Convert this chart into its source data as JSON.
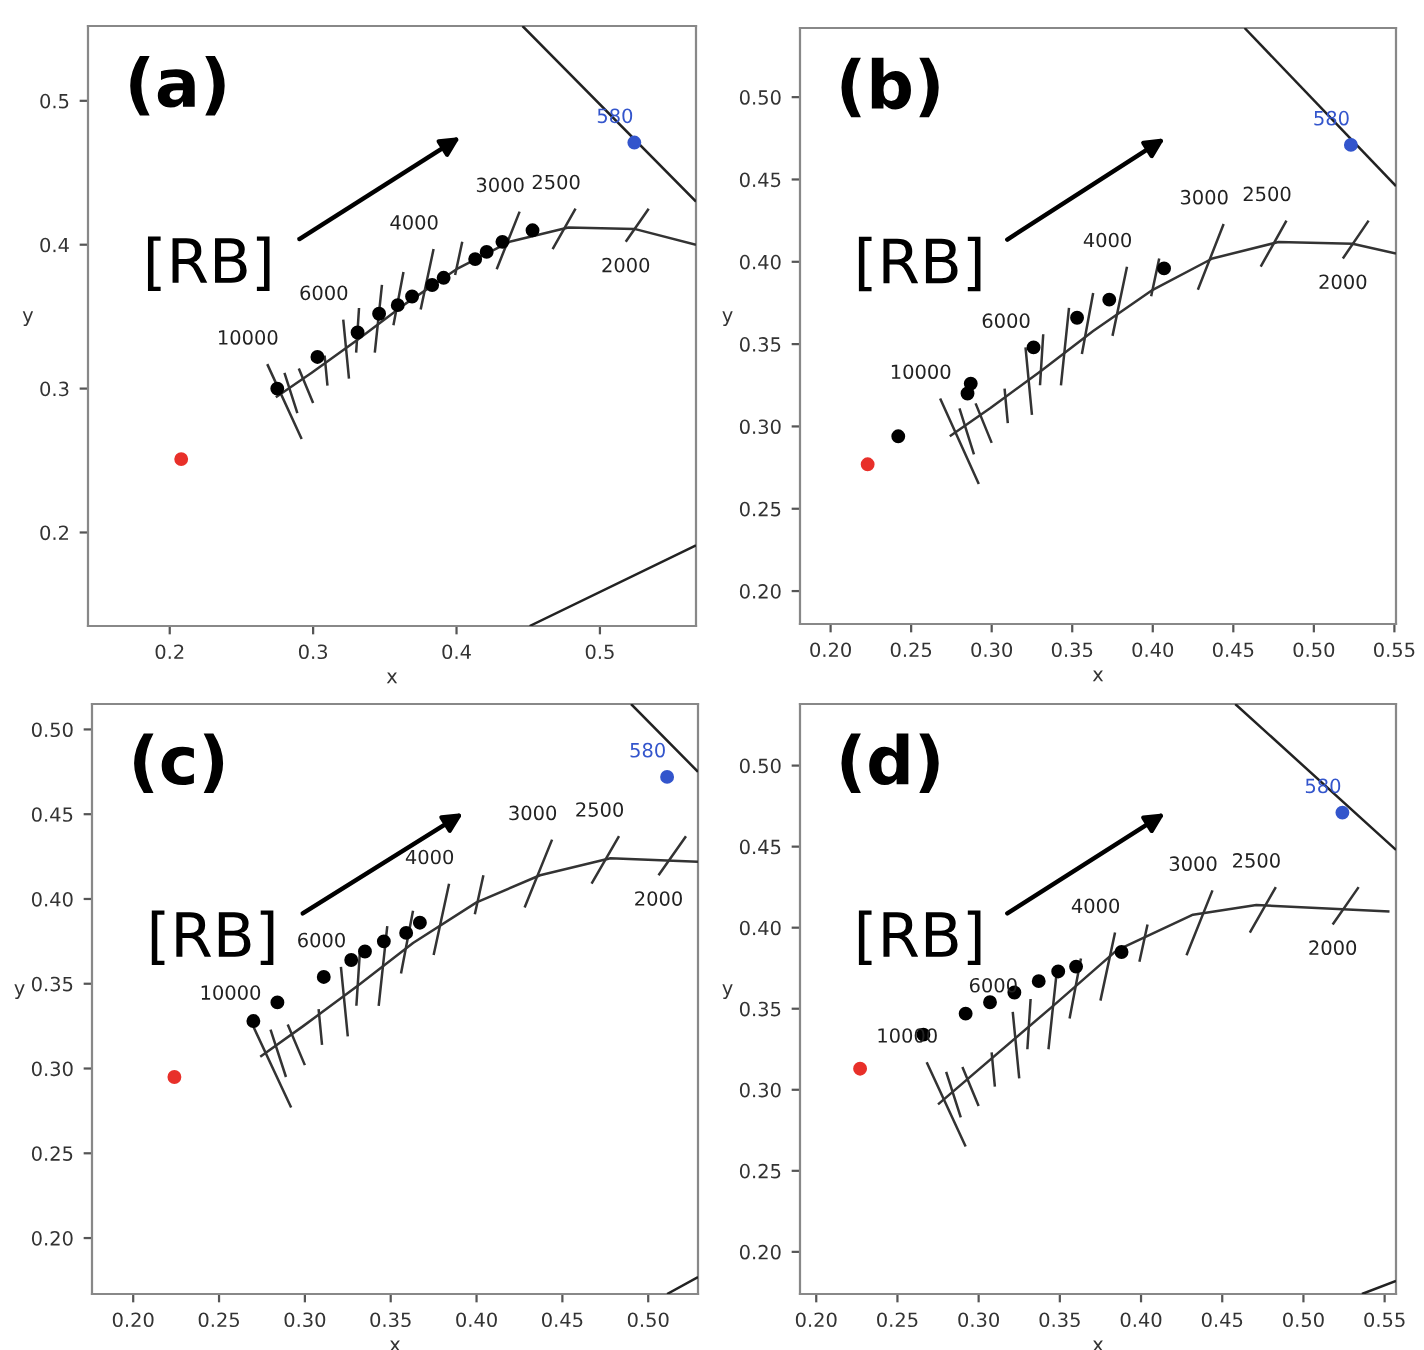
{
  "chart_data": [
    {
      "type": "scatter",
      "title": "(a)",
      "xlabel": "x",
      "ylabel": "y",
      "grid": false,
      "xlim": [
        0.143,
        0.567
      ],
      "ylim": [
        0.135,
        0.552
      ],
      "xticks": [
        0.2,
        0.3,
        0.4,
        0.5
      ],
      "yticks": [
        0.2,
        0.3,
        0.4,
        0.5
      ],
      "annotations": [
        "[RB]",
        {
          "text": "10000",
          "x": 0.268,
          "y": 0.317
        },
        {
          "text": "6000",
          "x": 0.321,
          "y": 0.348
        },
        {
          "text": "4000",
          "x": 0.384,
          "y": 0.397
        },
        {
          "text": "3000",
          "x": 0.444,
          "y": 0.423
        },
        {
          "text": "2500",
          "x": 0.483,
          "y": 0.425
        },
        {
          "text": "2000",
          "x": 0.518,
          "y": 0.402
        },
        {
          "text": "580",
          "x": 0.524,
          "y": 0.471
        }
      ],
      "series": [
        {
          "marker": "circle",
          "color": "#000000",
          "x": [
            0.275,
            0.303,
            0.331,
            0.346,
            0.359,
            0.369,
            0.383,
            0.391,
            0.413,
            0.421,
            0.432,
            0.453
          ],
          "values": [
            0.3,
            0.322,
            0.339,
            0.352,
            0.358,
            0.364,
            0.372,
            0.377,
            0.39,
            0.395,
            0.402,
            0.41
          ]
        },
        {
          "marker": "circle",
          "color": "#e8302a",
          "x": [
            0.208
          ],
          "values": [
            0.251
          ]
        },
        {
          "marker": "circle",
          "color": "#3355cc",
          "x": [
            0.524
          ],
          "values": [
            0.471
          ]
        },
        {
          "type": "line",
          "color": "#333333",
          "x": [
            0.274,
            0.299,
            0.331,
            0.363,
            0.4,
            0.437,
            0.478,
            0.524,
            0.567
          ],
          "values": [
            0.294,
            0.311,
            0.334,
            0.358,
            0.383,
            0.402,
            0.412,
            0.411,
            0.4
          ]
        },
        {
          "type": "line",
          "color": "#333333",
          "x": [
            0.268,
            0.292,
            null,
            0.28,
            0.289,
            null,
            0.29,
            0.3,
            null,
            0.308,
            0.31,
            null,
            0.321,
            0.325,
            null,
            0.332,
            0.33,
            null,
            0.348,
            0.343,
            null,
            0.363,
            0.356,
            null,
            0.384,
            0.375,
            null,
            0.404,
            0.399,
            null,
            0.444,
            0.428,
            null,
            0.483,
            0.467,
            null,
            0.534,
            0.518
          ],
          "values": [
            0.317,
            0.265,
            null,
            0.311,
            0.283,
            null,
            0.314,
            0.29,
            null,
            0.323,
            0.302,
            null,
            0.348,
            0.307,
            null,
            0.356,
            0.325,
            null,
            0.372,
            0.325,
            null,
            0.381,
            0.344,
            null,
            0.397,
            0.355,
            null,
            0.402,
            0.379,
            null,
            0.423,
            0.383,
            null,
            0.425,
            0.397,
            null,
            0.425,
            0.402
          ]
        },
        {
          "type": "line",
          "color": "#222222",
          "x": [
            0.446,
            0.567,
            null,
            0.451,
            0.567
          ],
          "values": [
            0.552,
            0.43,
            null,
            0.135,
            0.191
          ]
        }
      ]
    },
    {
      "type": "scatter",
      "title": "(b)",
      "xlabel": "x",
      "ylabel": "y",
      "grid": false,
      "xlim": [
        0.181,
        0.551
      ],
      "ylim": [
        0.18,
        0.542
      ],
      "xticks": [
        {
          "value": 0.2,
          "label": "0.20"
        },
        {
          "value": 0.25,
          "label": "0.25"
        },
        {
          "value": 0.3,
          "label": "0.30"
        },
        {
          "value": 0.35,
          "label": "0.35"
        },
        {
          "value": 0.4,
          "label": "0.40"
        },
        {
          "value": 0.45,
          "label": "0.45"
        },
        {
          "value": 0.5,
          "label": "0.50"
        },
        {
          "value": 0.55,
          "label": "0.55"
        }
      ],
      "yticks": [
        {
          "value": 0.2,
          "label": "0.20"
        },
        {
          "value": 0.25,
          "label": "0.25"
        },
        {
          "value": 0.3,
          "label": "0.30"
        },
        {
          "value": 0.35,
          "label": "0.35"
        },
        {
          "value": 0.4,
          "label": "0.40"
        },
        {
          "value": 0.45,
          "label": "0.45"
        },
        {
          "value": 0.5,
          "label": "0.50"
        }
      ],
      "annotations": [
        "[RB]",
        {
          "text": "10000",
          "x": 0.268,
          "y": 0.317
        },
        {
          "text": "6000",
          "x": 0.321,
          "y": 0.348
        },
        {
          "text": "4000",
          "x": 0.384,
          "y": 0.397
        },
        {
          "text": "3000",
          "x": 0.444,
          "y": 0.423
        },
        {
          "text": "2500",
          "x": 0.483,
          "y": 0.425
        },
        {
          "text": "2000",
          "x": 0.518,
          "y": 0.402
        },
        {
          "text": "580",
          "x": 0.523,
          "y": 0.471
        }
      ],
      "series": [
        {
          "marker": "circle",
          "color": "#000000",
          "x": [
            0.242,
            0.285,
            0.287,
            0.326,
            0.353,
            0.373,
            0.407
          ],
          "values": [
            0.294,
            0.32,
            0.326,
            0.348,
            0.366,
            0.377,
            0.396
          ]
        },
        {
          "marker": "circle",
          "color": "#e8302a",
          "x": [
            0.223
          ],
          "values": [
            0.277
          ]
        },
        {
          "marker": "circle",
          "color": "#3355cc",
          "x": [
            0.523
          ],
          "values": [
            0.471
          ]
        },
        {
          "type": "line",
          "color": "#333333",
          "x": [
            0.274,
            0.299,
            0.331,
            0.363,
            0.4,
            0.437,
            0.478,
            0.524,
            0.551
          ],
          "values": [
            0.294,
            0.311,
            0.334,
            0.358,
            0.383,
            0.402,
            0.412,
            0.411,
            0.405
          ]
        },
        {
          "type": "line",
          "color": "#333333",
          "x": [
            0.268,
            0.292,
            null,
            0.28,
            0.289,
            null,
            0.29,
            0.3,
            null,
            0.308,
            0.31,
            null,
            0.321,
            0.325,
            null,
            0.332,
            0.33,
            null,
            0.348,
            0.343,
            null,
            0.363,
            0.356,
            null,
            0.384,
            0.375,
            null,
            0.404,
            0.399,
            null,
            0.444,
            0.428,
            null,
            0.483,
            0.467,
            null,
            0.534,
            0.518
          ],
          "values": [
            0.317,
            0.265,
            null,
            0.311,
            0.283,
            null,
            0.314,
            0.29,
            null,
            0.323,
            0.302,
            null,
            0.348,
            0.307,
            null,
            0.356,
            0.325,
            null,
            0.372,
            0.325,
            null,
            0.381,
            0.344,
            null,
            0.397,
            0.355,
            null,
            0.402,
            0.379,
            null,
            0.423,
            0.383,
            null,
            0.425,
            0.397,
            null,
            0.425,
            0.402
          ]
        },
        {
          "type": "line",
          "color": "#222222",
          "x": [
            0.457,
            0.551
          ],
          "values": [
            0.542,
            0.446
          ]
        }
      ]
    },
    {
      "type": "scatter",
      "title": "(c)",
      "xlabel": "x",
      "ylabel": "y",
      "grid": false,
      "xlim": [
        0.176,
        0.529
      ],
      "ylim": [
        0.167,
        0.515
      ],
      "xticks": [
        {
          "value": 0.2,
          "label": "0.20"
        },
        {
          "value": 0.25,
          "label": "0.25"
        },
        {
          "value": 0.3,
          "label": "0.30"
        },
        {
          "value": 0.35,
          "label": "0.35"
        },
        {
          "value": 0.4,
          "label": "0.40"
        },
        {
          "value": 0.45,
          "label": "0.45"
        },
        {
          "value": 0.5,
          "label": "0.50"
        }
      ],
      "yticks": [
        {
          "value": 0.2,
          "label": "0.20"
        },
        {
          "value": 0.25,
          "label": "0.25"
        },
        {
          "value": 0.3,
          "label": "0.30"
        },
        {
          "value": 0.35,
          "label": "0.35"
        },
        {
          "value": 0.4,
          "label": "0.40"
        },
        {
          "value": 0.45,
          "label": "0.45"
        },
        {
          "value": 0.5,
          "label": "0.50"
        }
      ],
      "annotations": [
        "[RB]",
        {
          "text": "10000",
          "x": 0.268,
          "y": 0.329
        },
        {
          "text": "6000",
          "x": 0.321,
          "y": 0.36
        },
        {
          "text": "4000",
          "x": 0.384,
          "y": 0.409
        },
        {
          "text": "3000",
          "x": 0.444,
          "y": 0.435
        },
        {
          "text": "2500",
          "x": 0.483,
          "y": 0.437
        },
        {
          "text": "2000",
          "x": 0.506,
          "y": 0.414
        },
        {
          "text": "580",
          "x": 0.511,
          "y": 0.472
        }
      ],
      "series": [
        {
          "marker": "circle",
          "color": "#000000",
          "x": [
            0.27,
            0.284,
            0.311,
            0.327,
            0.335,
            0.346,
            0.359,
            0.367
          ],
          "values": [
            0.328,
            0.339,
            0.354,
            0.364,
            0.369,
            0.375,
            0.38,
            0.386
          ]
        },
        {
          "marker": "circle",
          "color": "#e8302a",
          "x": [
            0.224
          ],
          "values": [
            0.295
          ]
        },
        {
          "marker": "circle",
          "color": "#3355cc",
          "x": [
            0.511
          ],
          "values": [
            0.472
          ]
        },
        {
          "type": "line",
          "color": "#333333",
          "x": [
            0.274,
            0.299,
            0.331,
            0.363,
            0.4,
            0.437,
            0.478,
            0.529
          ],
          "values": [
            0.307,
            0.325,
            0.349,
            0.374,
            0.398,
            0.414,
            0.424,
            0.422
          ]
        },
        {
          "type": "line",
          "color": "#333333",
          "x": [
            0.268,
            0.292,
            null,
            0.28,
            0.289,
            null,
            0.29,
            0.3,
            null,
            0.308,
            0.31,
            null,
            0.321,
            0.325,
            null,
            0.332,
            0.33,
            null,
            0.348,
            0.343,
            null,
            0.363,
            0.356,
            null,
            0.384,
            0.375,
            null,
            0.404,
            0.399,
            null,
            0.444,
            0.428,
            null,
            0.483,
            0.467,
            null,
            0.522,
            0.506
          ],
          "values": [
            0.329,
            0.277,
            null,
            0.323,
            0.295,
            null,
            0.326,
            0.302,
            null,
            0.335,
            0.314,
            null,
            0.36,
            0.319,
            null,
            0.368,
            0.337,
            null,
            0.384,
            0.337,
            null,
            0.393,
            0.356,
            null,
            0.409,
            0.367,
            null,
            0.414,
            0.391,
            null,
            0.435,
            0.395,
            null,
            0.437,
            0.409,
            null,
            0.437,
            0.414
          ]
        },
        {
          "type": "line",
          "color": "#222222",
          "x": [
            0.49,
            0.529,
            null,
            0.511,
            0.529
          ],
          "values": [
            0.515,
            0.475,
            null,
            0.167,
            0.177
          ]
        }
      ]
    },
    {
      "type": "scatter",
      "title": "(d)",
      "xlabel": "x",
      "ylabel": "y",
      "grid": false,
      "xlim": [
        0.19,
        0.557
      ],
      "ylim": [
        0.174,
        0.538
      ],
      "xticks": [
        {
          "value": 0.2,
          "label": "0.20"
        },
        {
          "value": 0.25,
          "label": "0.25"
        },
        {
          "value": 0.3,
          "label": "0.30"
        },
        {
          "value": 0.35,
          "label": "0.35"
        },
        {
          "value": 0.4,
          "label": "0.40"
        },
        {
          "value": 0.45,
          "label": "0.45"
        },
        {
          "value": 0.5,
          "label": "0.50"
        },
        {
          "value": 0.55,
          "label": "0.55"
        }
      ],
      "yticks": [
        {
          "value": 0.2,
          "label": "0.20"
        },
        {
          "value": 0.25,
          "label": "0.25"
        },
        {
          "value": 0.3,
          "label": "0.30"
        },
        {
          "value": 0.35,
          "label": "0.35"
        },
        {
          "value": 0.4,
          "label": "0.40"
        },
        {
          "value": 0.45,
          "label": "0.45"
        },
        {
          "value": 0.5,
          "label": "0.50"
        }
      ],
      "annotations": [
        "[RB]",
        {
          "text": "10000",
          "x": 0.268,
          "y": 0.317
        },
        {
          "text": "6000",
          "x": 0.321,
          "y": 0.348
        },
        {
          "text": "4000",
          "x": 0.384,
          "y": 0.397
        },
        {
          "text": "3000",
          "x": 0.444,
          "y": 0.423
        },
        {
          "text": "2500",
          "x": 0.483,
          "y": 0.425
        },
        {
          "text": "2000",
          "x": 0.518,
          "y": 0.402
        },
        {
          "text": "580",
          "x": 0.524,
          "y": 0.471
        }
      ],
      "series": [
        {
          "marker": "circle",
          "color": "#000000",
          "x": [
            0.266,
            0.292,
            0.307,
            0.322,
            0.337,
            0.349,
            0.36,
            0.388
          ],
          "values": [
            0.334,
            0.347,
            0.354,
            0.36,
            0.367,
            0.373,
            0.376,
            0.385
          ]
        },
        {
          "marker": "circle",
          "color": "#e8302a",
          "x": [
            0.227
          ],
          "values": [
            0.313
          ]
        },
        {
          "marker": "circle",
          "color": "#3355cc",
          "x": [
            0.524
          ],
          "values": [
            0.471
          ]
        },
        {
          "type": "line",
          "color": "#333333",
          "x": [
            0.275,
            0.345,
            0.385,
            0.432,
            0.471,
            0.553
          ],
          "values": [
            0.291,
            0.351,
            0.386,
            0.408,
            0.414,
            0.41
          ]
        },
        {
          "type": "line",
          "color": "#333333",
          "x": [
            0.268,
            0.292,
            null,
            0.28,
            0.289,
            null,
            0.29,
            0.3,
            null,
            0.308,
            0.31,
            null,
            0.321,
            0.325,
            null,
            0.332,
            0.33,
            null,
            0.348,
            0.343,
            null,
            0.363,
            0.356,
            null,
            0.384,
            0.375,
            null,
            0.404,
            0.399,
            null,
            0.444,
            0.428,
            null,
            0.483,
            0.467,
            null,
            0.534,
            0.518
          ],
          "values": [
            0.317,
            0.265,
            null,
            0.311,
            0.283,
            null,
            0.314,
            0.29,
            null,
            0.323,
            0.302,
            null,
            0.348,
            0.307,
            null,
            0.356,
            0.325,
            null,
            0.372,
            0.325,
            null,
            0.381,
            0.344,
            null,
            0.397,
            0.355,
            null,
            0.402,
            0.379,
            null,
            0.423,
            0.383,
            null,
            0.425,
            0.397,
            null,
            0.425,
            0.402
          ]
        },
        {
          "type": "line",
          "color": "#222222",
          "x": [
            0.458,
            0.557,
            null,
            0.536,
            0.557
          ],
          "values": [
            0.538,
            0.448,
            null,
            0.174,
            0.182
          ]
        }
      ]
    }
  ]
}
